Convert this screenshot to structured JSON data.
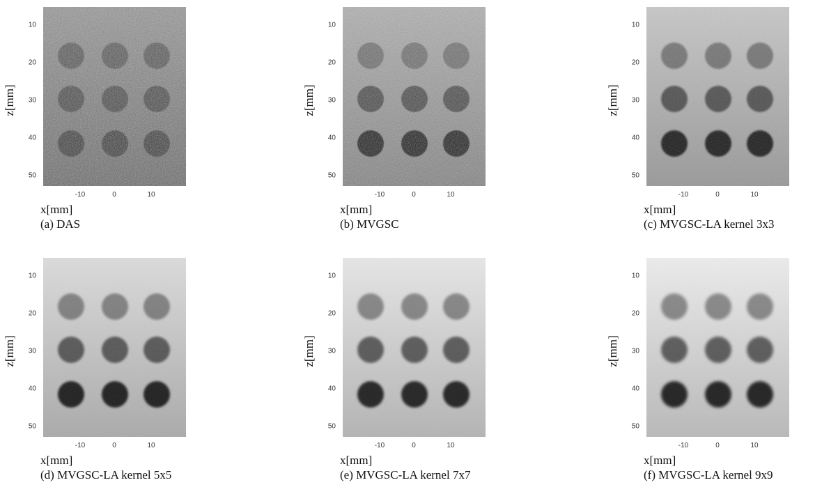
{
  "axis": {
    "x_label": "x[mm]",
    "z_label": "z[mm]",
    "x_ticks": [
      "-10",
      "0",
      "10"
    ],
    "z_ticks": [
      "10",
      "20",
      "30",
      "40",
      "50"
    ]
  },
  "panels": [
    {
      "caption": "(a) DAS"
    },
    {
      "caption": "(b) MVGSC"
    },
    {
      "caption": "(c) MVGSC-LA kernel 3x3"
    },
    {
      "caption": "(d) MVGSC-LA kernel 5x5"
    },
    {
      "caption": "(e) MVGSC-LA kernel 7x7"
    },
    {
      "caption": "(f) MVGSC-LA kernel 9x9"
    }
  ]
}
